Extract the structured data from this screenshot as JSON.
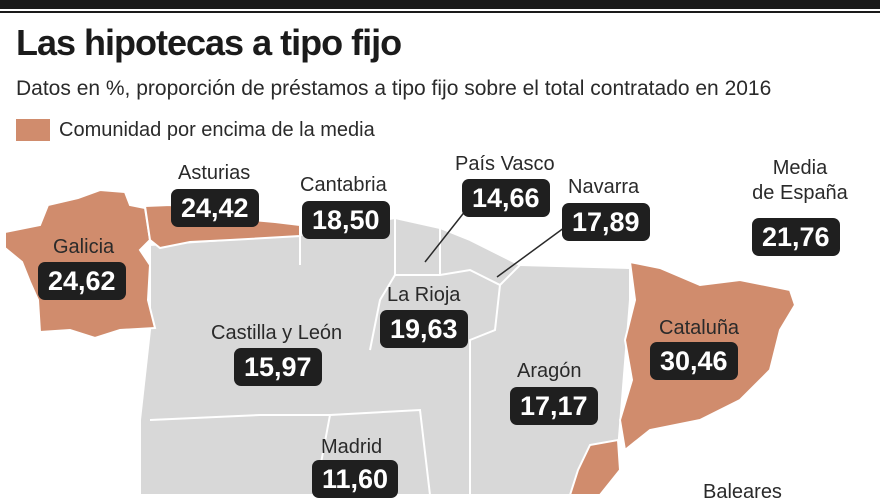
{
  "title": "Las hipotecas a tipo fijo",
  "subtitle": "Datos en %, proporción de préstamos a tipo fijo sobre el total contratado en 2016",
  "legend": {
    "label": "Comunidad por encima de la media",
    "color": "#d08c6d"
  },
  "colors": {
    "above_average": "#d08c6d",
    "below_average": "#d8d8d8",
    "border": "#ffffff",
    "label_box": "#1f1f1f"
  },
  "average": {
    "label_line1": "Media",
    "label_line2": "de España",
    "value": "21,76"
  },
  "regions": [
    {
      "name": "Galicia",
      "value": "24,62",
      "above_average": true
    },
    {
      "name": "Asturias",
      "value": "24,42",
      "above_average": true
    },
    {
      "name": "Cantabria",
      "value": "18,50",
      "above_average": false
    },
    {
      "name": "País Vasco",
      "value": "14,66",
      "above_average": false
    },
    {
      "name": "Navarra",
      "value": "17,89",
      "above_average": false
    },
    {
      "name": "La Rioja",
      "value": "19,63",
      "above_average": false
    },
    {
      "name": "Castilla y León",
      "value": "15,97",
      "above_average": false
    },
    {
      "name": "Aragón",
      "value": "17,17",
      "above_average": false
    },
    {
      "name": "Cataluña",
      "value": "30,46",
      "above_average": true
    },
    {
      "name": "Madrid",
      "value": "11,60",
      "above_average": false
    },
    {
      "name": "Baleares",
      "value": "",
      "above_average": false
    }
  ]
}
